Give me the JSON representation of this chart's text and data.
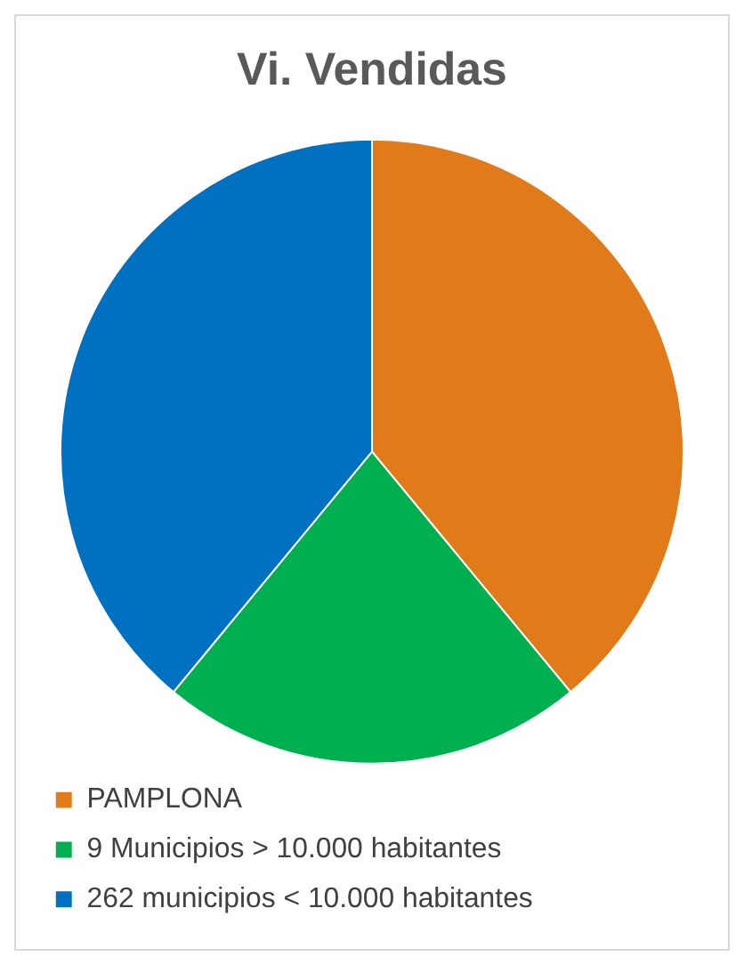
{
  "chart_data": {
    "type": "pie",
    "title": "Vi. Vendidas",
    "categories": [
      "PAMPLONA",
      "9 Municipios > 10.000 habitantes",
      "262 municipios < 10.000 habitantes"
    ],
    "values": [
      39,
      22,
      39
    ],
    "colors": [
      "#e17a18",
      "#00b050",
      "#0070c0"
    ],
    "legend": "bottom"
  }
}
